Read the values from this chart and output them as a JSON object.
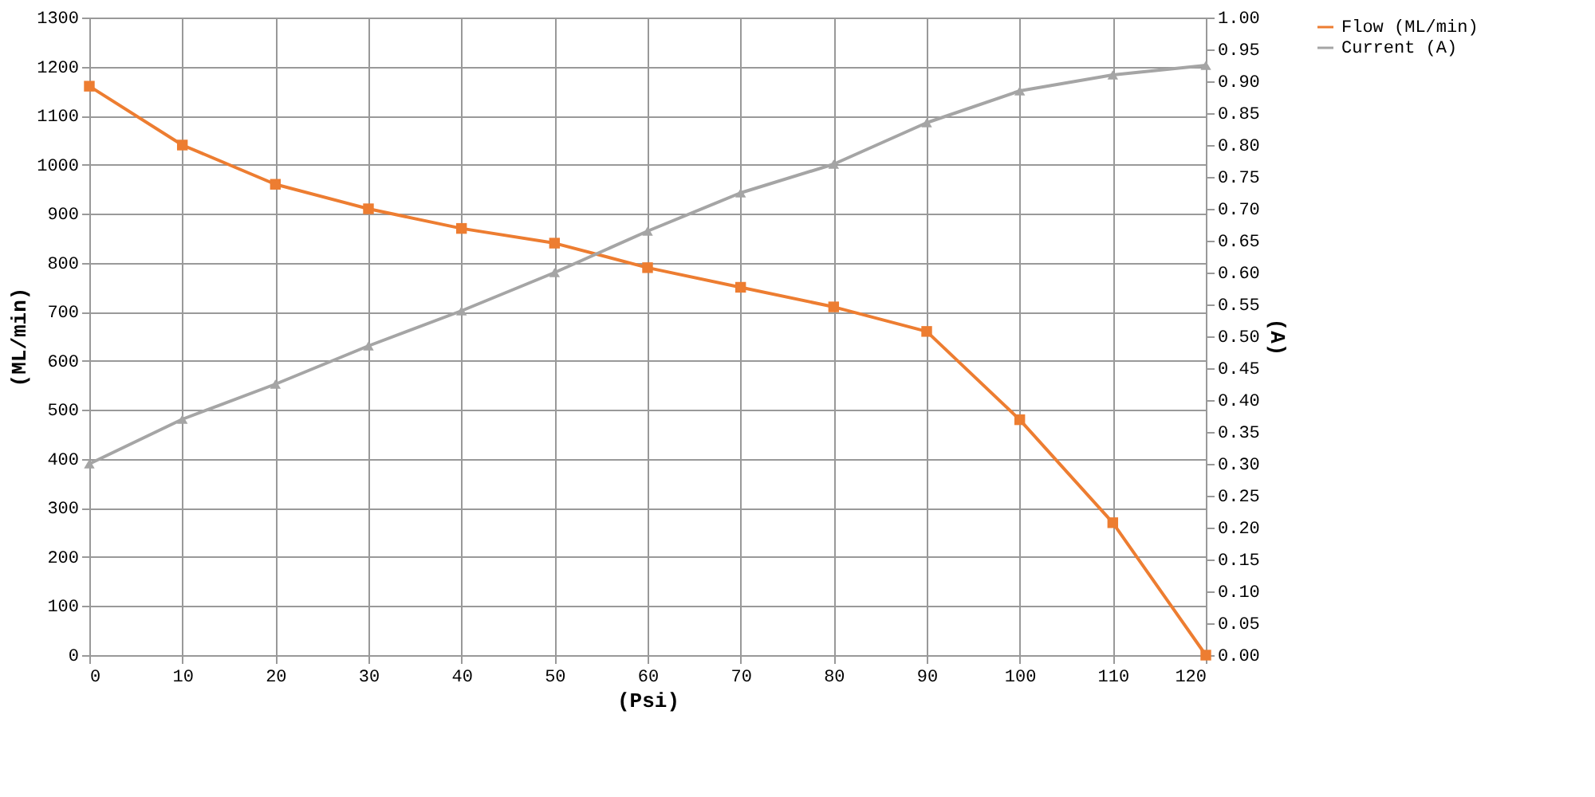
{
  "chart_data": {
    "type": "line",
    "xlabel": "(Psi)",
    "ylabel": "(ML/min)",
    "y2label": "(A)",
    "x": [
      0,
      10,
      20,
      30,
      40,
      50,
      60,
      70,
      80,
      90,
      100,
      110,
      120
    ],
    "series": [
      {
        "name": "Flow (ML/min)",
        "color": "#ed7d31",
        "marker": "square",
        "values": [
          1160,
          1040,
          960,
          910,
          870,
          840,
          790,
          750,
          710,
          660,
          480,
          270,
          0
        ]
      },
      {
        "name": "Current (A)",
        "color": "#a5a5a5",
        "marker": "triangle",
        "axis": "y2",
        "values": [
          0.3,
          0.37,
          0.425,
          0.485,
          0.54,
          0.6,
          0.665,
          0.725,
          0.77,
          0.835,
          0.885,
          0.91,
          0.925
        ]
      }
    ],
    "xlim": [
      0,
      120
    ],
    "xticks": [
      0,
      10,
      20,
      30,
      40,
      50,
      60,
      70,
      80,
      90,
      100,
      110,
      120
    ],
    "ylim": [
      0,
      1300
    ],
    "yticks": [
      0,
      100,
      200,
      300,
      400,
      500,
      600,
      700,
      800,
      900,
      1000,
      1100,
      1200,
      1300
    ],
    "y2lim": [
      0,
      1
    ],
    "y2ticks": [
      {
        "value": 0,
        "label": "0.00"
      },
      {
        "value": 0.05,
        "label": "0.05"
      },
      {
        "value": 0.1,
        "label": "0.10"
      },
      {
        "value": 0.15,
        "label": "0.15"
      },
      {
        "value": 0.2,
        "label": "0.20"
      },
      {
        "value": 0.25,
        "label": "0.25"
      },
      {
        "value": 0.3,
        "label": "0.30"
      },
      {
        "value": 0.35,
        "label": "0.35"
      },
      {
        "value": 0.4,
        "label": "0.40"
      },
      {
        "value": 0.45,
        "label": "0.45"
      },
      {
        "value": 0.5,
        "label": "0.50"
      },
      {
        "value": 0.55,
        "label": "0.55"
      },
      {
        "value": 0.6,
        "label": "0.60"
      },
      {
        "value": 0.65,
        "label": "0.65"
      },
      {
        "value": 0.7,
        "label": "0.70"
      },
      {
        "value": 0.75,
        "label": "0.75"
      },
      {
        "value": 0.8,
        "label": "0.80"
      },
      {
        "value": 0.85,
        "label": "0.85"
      },
      {
        "value": 0.9,
        "label": "0.90"
      },
      {
        "value": 0.95,
        "label": "0.95"
      },
      {
        "value": 1,
        "label": "1.00"
      }
    ],
    "grid": true,
    "legend": "right",
    "line_style": "solid"
  }
}
